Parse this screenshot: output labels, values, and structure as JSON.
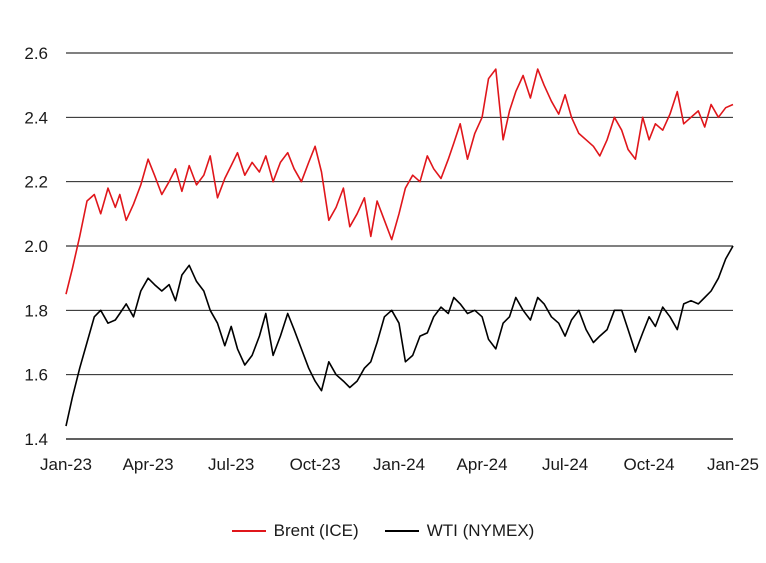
{
  "chart_data": {
    "type": "line",
    "title": "",
    "xlabel": "",
    "ylabel": "",
    "ylim": [
      1.4,
      2.6
    ],
    "yticks": [
      "1.4",
      "1.6",
      "1.8",
      "2.0",
      "2.2",
      "2.4",
      "2.6"
    ],
    "xlim": [
      "2023-01",
      "2025-01"
    ],
    "xticks": [
      "Jan-23",
      "Apr-23",
      "Jul-23",
      "Oct-23",
      "Jan-24",
      "Apr-24",
      "Jul-24",
      "Oct-24",
      "Jan-25"
    ],
    "grid": "horizontal",
    "legend_position": "bottom",
    "series": [
      {
        "name": "Brent (ICE)",
        "color": "#e0161b",
        "x": [
          "2023-01-01",
          "2023-01-08",
          "2023-01-16",
          "2023-01-24",
          "2023-02-01",
          "2023-02-08",
          "2023-02-16",
          "2023-02-24",
          "2023-03-01",
          "2023-03-08",
          "2023-03-16",
          "2023-03-24",
          "2023-04-01",
          "2023-04-08",
          "2023-04-16",
          "2023-04-24",
          "2023-05-01",
          "2023-05-08",
          "2023-05-16",
          "2023-05-24",
          "2023-06-01",
          "2023-06-08",
          "2023-06-16",
          "2023-06-24",
          "2023-07-01",
          "2023-07-08",
          "2023-07-16",
          "2023-07-24",
          "2023-08-01",
          "2023-08-08",
          "2023-08-16",
          "2023-08-24",
          "2023-09-01",
          "2023-09-08",
          "2023-09-16",
          "2023-09-24",
          "2023-10-01",
          "2023-10-08",
          "2023-10-16",
          "2023-10-24",
          "2023-11-01",
          "2023-11-08",
          "2023-11-16",
          "2023-11-24",
          "2023-12-01",
          "2023-12-08",
          "2023-12-16",
          "2023-12-24",
          "2024-01-01",
          "2024-01-08",
          "2024-01-16",
          "2024-01-24",
          "2024-02-01",
          "2024-02-08",
          "2024-02-16",
          "2024-02-24",
          "2024-03-01",
          "2024-03-08",
          "2024-03-16",
          "2024-03-24",
          "2024-04-01",
          "2024-04-08",
          "2024-04-16",
          "2024-04-24",
          "2024-05-01",
          "2024-05-08",
          "2024-05-16",
          "2024-05-24",
          "2024-06-01",
          "2024-06-08",
          "2024-06-16",
          "2024-06-24",
          "2024-07-01",
          "2024-07-08",
          "2024-07-16",
          "2024-07-24",
          "2024-08-01",
          "2024-08-08",
          "2024-08-16",
          "2024-08-24",
          "2024-09-01",
          "2024-09-08",
          "2024-09-16",
          "2024-09-24",
          "2024-10-01",
          "2024-10-08",
          "2024-10-16",
          "2024-10-24",
          "2024-11-01",
          "2024-11-08",
          "2024-11-16",
          "2024-11-24",
          "2024-12-01",
          "2024-12-08",
          "2024-12-16",
          "2024-12-24",
          "2025-01-01"
        ],
        "y": [
          1.85,
          1.93,
          2.03,
          2.14,
          2.16,
          2.1,
          2.18,
          2.12,
          2.16,
          2.08,
          2.13,
          2.19,
          2.27,
          2.22,
          2.16,
          2.2,
          2.24,
          2.17,
          2.25,
          2.19,
          2.22,
          2.28,
          2.15,
          2.21,
          2.25,
          2.29,
          2.22,
          2.26,
          2.23,
          2.28,
          2.2,
          2.26,
          2.29,
          2.24,
          2.2,
          2.26,
          2.31,
          2.23,
          2.08,
          2.12,
          2.18,
          2.06,
          2.1,
          2.15,
          2.03,
          2.14,
          2.08,
          2.02,
          2.1,
          2.18,
          2.22,
          2.2,
          2.28,
          2.24,
          2.21,
          2.27,
          2.32,
          2.38,
          2.27,
          2.35,
          2.4,
          2.52,
          2.55,
          2.33,
          2.42,
          2.48,
          2.53,
          2.46,
          2.55,
          2.5,
          2.45,
          2.41,
          2.47,
          2.4,
          2.35,
          2.33,
          2.31,
          2.28,
          2.33,
          2.4,
          2.36,
          2.3,
          2.27,
          2.4,
          2.33,
          2.38,
          2.36,
          2.41,
          2.48,
          2.38,
          2.4,
          2.42,
          2.37,
          2.44,
          2.4,
          2.43,
          2.44
        ]
      },
      {
        "name": "WTI (NYMEX)",
        "color": "#000000",
        "x": [
          "2023-01-01",
          "2023-01-08",
          "2023-01-16",
          "2023-01-24",
          "2023-02-01",
          "2023-02-08",
          "2023-02-16",
          "2023-02-24",
          "2023-03-01",
          "2023-03-08",
          "2023-03-16",
          "2023-03-24",
          "2023-04-01",
          "2023-04-08",
          "2023-04-16",
          "2023-04-24",
          "2023-05-01",
          "2023-05-08",
          "2023-05-16",
          "2023-05-24",
          "2023-06-01",
          "2023-06-08",
          "2023-06-16",
          "2023-06-24",
          "2023-07-01",
          "2023-07-08",
          "2023-07-16",
          "2023-07-24",
          "2023-08-01",
          "2023-08-08",
          "2023-08-16",
          "2023-08-24",
          "2023-09-01",
          "2023-09-08",
          "2023-09-16",
          "2023-09-24",
          "2023-10-01",
          "2023-10-08",
          "2023-10-16",
          "2023-10-24",
          "2023-11-01",
          "2023-11-08",
          "2023-11-16",
          "2023-11-24",
          "2023-12-01",
          "2023-12-08",
          "2023-12-16",
          "2023-12-24",
          "2024-01-01",
          "2024-01-08",
          "2024-01-16",
          "2024-01-24",
          "2024-02-01",
          "2024-02-08",
          "2024-02-16",
          "2024-02-24",
          "2024-03-01",
          "2024-03-08",
          "2024-03-16",
          "2024-03-24",
          "2024-04-01",
          "2024-04-08",
          "2024-04-16",
          "2024-04-24",
          "2024-05-01",
          "2024-05-08",
          "2024-05-16",
          "2024-05-24",
          "2024-06-01",
          "2024-06-08",
          "2024-06-16",
          "2024-06-24",
          "2024-07-01",
          "2024-07-08",
          "2024-07-16",
          "2024-07-24",
          "2024-08-01",
          "2024-08-08",
          "2024-08-16",
          "2024-08-24",
          "2024-09-01",
          "2024-09-08",
          "2024-09-16",
          "2024-09-24",
          "2024-10-01",
          "2024-10-08",
          "2024-10-16",
          "2024-10-24",
          "2024-11-01",
          "2024-11-08",
          "2024-11-16",
          "2024-11-24",
          "2024-12-01",
          "2024-12-08",
          "2024-12-16",
          "2024-12-24",
          "2025-01-01"
        ],
        "y": [
          1.44,
          1.53,
          1.62,
          1.7,
          1.78,
          1.8,
          1.76,
          1.77,
          1.79,
          1.82,
          1.78,
          1.86,
          1.9,
          1.88,
          1.86,
          1.88,
          1.83,
          1.91,
          1.94,
          1.89,
          1.86,
          1.8,
          1.76,
          1.69,
          1.75,
          1.68,
          1.63,
          1.66,
          1.72,
          1.79,
          1.66,
          1.72,
          1.79,
          1.74,
          1.68,
          1.62,
          1.58,
          1.55,
          1.64,
          1.6,
          1.58,
          1.56,
          1.58,
          1.62,
          1.64,
          1.7,
          1.78,
          1.8,
          1.76,
          1.64,
          1.66,
          1.72,
          1.73,
          1.78,
          1.81,
          1.79,
          1.84,
          1.82,
          1.79,
          1.8,
          1.78,
          1.71,
          1.68,
          1.76,
          1.78,
          1.84,
          1.8,
          1.77,
          1.84,
          1.82,
          1.78,
          1.76,
          1.72,
          1.77,
          1.8,
          1.74,
          1.7,
          1.72,
          1.74,
          1.8,
          1.8,
          1.74,
          1.67,
          1.73,
          1.78,
          1.75,
          1.81,
          1.78,
          1.74,
          1.82,
          1.83,
          1.82,
          1.84,
          1.86,
          1.9,
          1.96,
          2.0
        ]
      }
    ]
  }
}
